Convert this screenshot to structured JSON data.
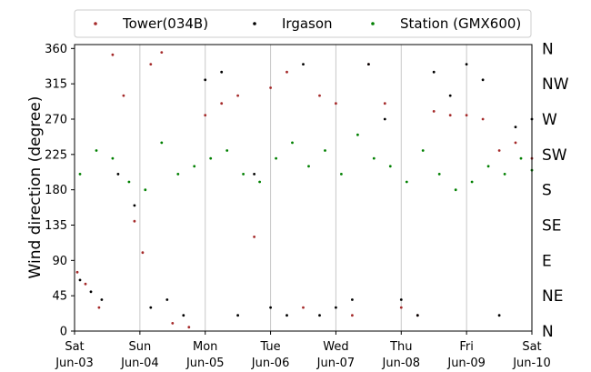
{
  "chart_data": {
    "type": "scatter",
    "ylabel": "Wind direction (degree)",
    "ylim": [
      0,
      365
    ],
    "xlim": [
      "2017-06-03",
      "2017-06-10"
    ],
    "yticks": [
      0,
      45,
      90,
      135,
      180,
      225,
      270,
      315,
      360
    ],
    "xtick_labels": [
      {
        "day": "Sat",
        "date": "Jun-03"
      },
      {
        "day": "Sun",
        "date": "Jun-04"
      },
      {
        "day": "Mon",
        "date": "Jun-05"
      },
      {
        "day": "Tue",
        "date": "Jun-06"
      },
      {
        "day": "Wed",
        "date": "Jun-07"
      },
      {
        "day": "Thu",
        "date": "Jun-08"
      },
      {
        "day": "Fri",
        "date": "Jun-09"
      },
      {
        "day": "Sat",
        "date": "Jun-10"
      }
    ],
    "compass_labels": [
      "N",
      "NE",
      "E",
      "SE",
      "S",
      "SW",
      "W",
      "NW",
      "N"
    ],
    "grid": "vertical, daily",
    "legend_position": "top, outside",
    "series": [
      {
        "name": "Tower(034B)",
        "color": "#a52a2a",
        "points": [
          [
            "2017-06-03 01:00",
            75
          ],
          [
            "2017-06-03 04:00",
            60
          ],
          [
            "2017-06-03 09:00",
            30
          ],
          [
            "2017-06-03 14:00",
            352
          ],
          [
            "2017-06-03 18:00",
            300
          ],
          [
            "2017-06-03 22:00",
            140
          ],
          [
            "2017-06-04 01:00",
            100
          ],
          [
            "2017-06-04 04:00",
            340
          ],
          [
            "2017-06-04 08:00",
            355
          ],
          [
            "2017-06-04 12:00",
            10
          ],
          [
            "2017-06-04 18:00",
            5
          ],
          [
            "2017-06-05 00:00",
            275
          ],
          [
            "2017-06-05 06:00",
            290
          ],
          [
            "2017-06-05 12:00",
            300
          ],
          [
            "2017-06-05 18:00",
            120
          ],
          [
            "2017-06-06 00:00",
            310
          ],
          [
            "2017-06-06 06:00",
            330
          ],
          [
            "2017-06-06 12:00",
            30
          ],
          [
            "2017-06-06 18:00",
            300
          ],
          [
            "2017-06-07 00:00",
            290
          ],
          [
            "2017-06-07 06:00",
            20
          ],
          [
            "2017-06-07 12:00",
            340
          ],
          [
            "2017-06-07 18:00",
            290
          ],
          [
            "2017-06-08 00:00",
            30
          ],
          [
            "2017-06-08 06:00",
            20
          ],
          [
            "2017-06-08 12:00",
            280
          ],
          [
            "2017-06-08 18:00",
            275
          ],
          [
            "2017-06-09 00:00",
            275
          ],
          [
            "2017-06-09 06:00",
            270
          ],
          [
            "2017-06-09 12:00",
            230
          ],
          [
            "2017-06-09 18:00",
            240
          ],
          [
            "2017-06-10 00:00",
            220
          ]
        ]
      },
      {
        "name": "Irgason",
        "color": "#000000",
        "points": [
          [
            "2017-06-03 02:00",
            65
          ],
          [
            "2017-06-03 06:00",
            50
          ],
          [
            "2017-06-03 10:00",
            40
          ],
          [
            "2017-06-03 16:00",
            200
          ],
          [
            "2017-06-03 22:00",
            160
          ],
          [
            "2017-06-04 04:00",
            30
          ],
          [
            "2017-06-04 10:00",
            40
          ],
          [
            "2017-06-04 16:00",
            20
          ],
          [
            "2017-06-05 00:00",
            320
          ],
          [
            "2017-06-05 06:00",
            330
          ],
          [
            "2017-06-05 12:00",
            20
          ],
          [
            "2017-06-05 18:00",
            200
          ],
          [
            "2017-06-06 00:00",
            30
          ],
          [
            "2017-06-06 06:00",
            20
          ],
          [
            "2017-06-06 12:00",
            340
          ],
          [
            "2017-06-06 18:00",
            20
          ],
          [
            "2017-06-07 00:00",
            30
          ],
          [
            "2017-06-07 06:00",
            40
          ],
          [
            "2017-06-07 12:00",
            340
          ],
          [
            "2017-06-07 18:00",
            270
          ],
          [
            "2017-06-08 00:00",
            40
          ],
          [
            "2017-06-08 06:00",
            20
          ],
          [
            "2017-06-08 12:00",
            330
          ],
          [
            "2017-06-08 18:00",
            300
          ],
          [
            "2017-06-09 00:00",
            340
          ],
          [
            "2017-06-09 06:00",
            320
          ],
          [
            "2017-06-09 12:00",
            20
          ],
          [
            "2017-06-09 18:00",
            260
          ],
          [
            "2017-06-10 00:00",
            270
          ]
        ]
      },
      {
        "name": "Station (GMX600)",
        "color": "#008000",
        "points": [
          [
            "2017-06-03 02:00",
            200
          ],
          [
            "2017-06-03 08:00",
            230
          ],
          [
            "2017-06-03 14:00",
            220
          ],
          [
            "2017-06-03 20:00",
            190
          ],
          [
            "2017-06-04 02:00",
            180
          ],
          [
            "2017-06-04 08:00",
            240
          ],
          [
            "2017-06-04 14:00",
            200
          ],
          [
            "2017-06-04 20:00",
            210
          ],
          [
            "2017-06-05 02:00",
            220
          ],
          [
            "2017-06-05 08:00",
            230
          ],
          [
            "2017-06-05 14:00",
            200
          ],
          [
            "2017-06-05 20:00",
            190
          ],
          [
            "2017-06-06 02:00",
            220
          ],
          [
            "2017-06-06 08:00",
            240
          ],
          [
            "2017-06-06 14:00",
            210
          ],
          [
            "2017-06-06 20:00",
            230
          ],
          [
            "2017-06-07 02:00",
            200
          ],
          [
            "2017-06-07 08:00",
            250
          ],
          [
            "2017-06-07 14:00",
            220
          ],
          [
            "2017-06-07 20:00",
            210
          ],
          [
            "2017-06-08 02:00",
            190
          ],
          [
            "2017-06-08 08:00",
            230
          ],
          [
            "2017-06-08 14:00",
            200
          ],
          [
            "2017-06-08 20:00",
            180
          ],
          [
            "2017-06-09 02:00",
            190
          ],
          [
            "2017-06-09 08:00",
            210
          ],
          [
            "2017-06-09 14:00",
            200
          ],
          [
            "2017-06-09 20:00",
            220
          ],
          [
            "2017-06-10 00:00",
            205
          ]
        ]
      }
    ]
  }
}
